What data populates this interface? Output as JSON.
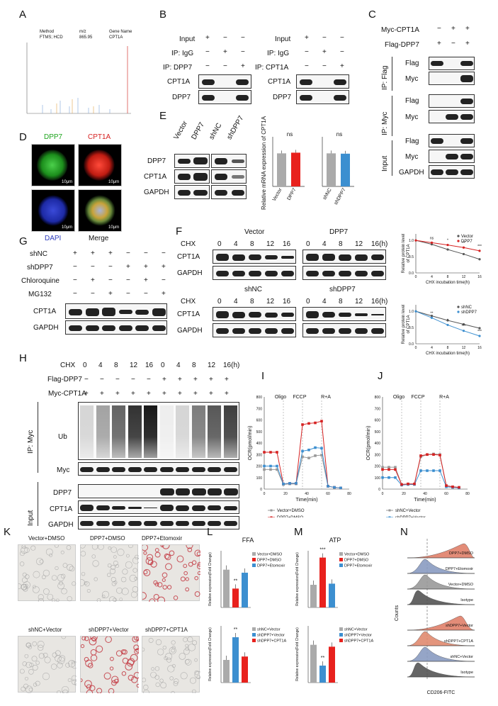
{
  "panels": {
    "A": "A",
    "B": "B",
    "C": "C",
    "D": "D",
    "E": "E",
    "F": "F",
    "G": "G",
    "H": "H",
    "I": "I",
    "J": "J",
    "K": "K",
    "L": "L",
    "M": "M",
    "N": "N"
  },
  "panelA": {
    "col1": "Method",
    "col1_val": "FTMS; HCD",
    "col2": "m/z",
    "col2_val": "865.95",
    "col3": "Gene Name",
    "col3_val": "CPT1A"
  },
  "panelB": {
    "rows_left": [
      "Input",
      "IP: IgG",
      "IP: DPP7"
    ],
    "rows_right": [
      "Input",
      "IP: IgG",
      "IP: CPT1A"
    ],
    "signs": [
      "+",
      "−",
      "−",
      "−",
      "+",
      "−",
      "−",
      "−",
      "+"
    ],
    "bands": [
      "CPT1A",
      "DPP7"
    ]
  },
  "panelC": {
    "rows": [
      "Myc-CPT1A",
      "Flag-DPP7"
    ],
    "signs": [
      "−",
      "+",
      "+",
      "+",
      "−",
      "+"
    ],
    "groups": [
      "IP: Flag",
      "IP: Myc",
      "Input"
    ],
    "bands": [
      "Flag",
      "Myc",
      "Flag",
      "Myc",
      "Flag",
      "Myc",
      "GAPDH"
    ]
  },
  "panelD": {
    "labels": [
      "DPP7",
      "CPT1A",
      "DAPI",
      "Merge"
    ],
    "scale": "10μm"
  },
  "panelE": {
    "cols": [
      "Vector",
      "DPP7",
      "shNC",
      "shDPP7"
    ],
    "bands": [
      "DPP7",
      "CPT1A",
      "GAPDH"
    ],
    "ylabel": "Relative mRNA expression\nof CPT1A",
    "ns": "ns",
    "chart_data": [
      {
        "type": "bar",
        "categories": [
          "Vector",
          "DPP7"
        ],
        "values": [
          1.0,
          1.02
        ],
        "colors": [
          "#aaaaaa",
          "#e8211d"
        ],
        "ylim": [
          0,
          1.5
        ]
      },
      {
        "type": "bar",
        "categories": [
          "shNC",
          "shDPP7"
        ],
        "values": [
          1.0,
          0.99
        ],
        "colors": [
          "#aaaaaa",
          "#3c8fd0"
        ],
        "ylim": [
          0,
          1.5
        ]
      }
    ]
  },
  "panelF": {
    "chx": "CHX",
    "times": [
      "0",
      "4",
      "8",
      "12",
      "16"
    ],
    "time_last": "16(h)",
    "groups": [
      "Vector",
      "DPP7",
      "shNC",
      "shDPP7"
    ],
    "bands": [
      "CPT1A",
      "GAPDH"
    ],
    "ylabel": "Relative protein level\nof CPT1A",
    "xlabel": "CHX incubation time(h)",
    "chart_data": [
      {
        "type": "line",
        "x": [
          0,
          4,
          8,
          12,
          16
        ],
        "series": [
          {
            "name": "Vector",
            "values": [
              1.0,
              0.88,
              0.72,
              0.58,
              0.42
            ],
            "color": "#555555"
          },
          {
            "name": "DPP7",
            "values": [
              1.0,
              0.93,
              0.86,
              0.78,
              0.68
            ],
            "color": "#d62222"
          }
        ],
        "sig": [
          "ns",
          "*",
          "**",
          "***"
        ]
      },
      {
        "type": "line",
        "x": [
          0,
          4,
          8,
          12,
          16
        ],
        "series": [
          {
            "name": "shNC",
            "values": [
              1.0,
              0.86,
              0.72,
              0.6,
              0.48
            ],
            "color": "#555555"
          },
          {
            "name": "shDPP7",
            "values": [
              1.0,
              0.8,
              0.58,
              0.4,
              0.24
            ],
            "color": "#3c8fd0"
          }
        ],
        "sig": [
          "**",
          "*",
          "***",
          "***"
        ]
      }
    ]
  },
  "panelG": {
    "rows": [
      "shNC",
      "shDPP7",
      "Chloroquine",
      "MG132"
    ],
    "signs": [
      [
        "+",
        "+",
        "+",
        "−",
        "−",
        "−"
      ],
      [
        "−",
        "−",
        "−",
        "+",
        "+",
        "+"
      ],
      [
        "−",
        "+",
        "−",
        "−",
        "+",
        "−"
      ],
      [
        "−",
        "−",
        "+",
        "−",
        "−",
        "+"
      ]
    ],
    "bands": [
      "CPT1A",
      "GAPDH"
    ]
  },
  "panelH": {
    "chx": "CHX",
    "times": [
      "0",
      "4",
      "8",
      "12",
      "16",
      "0",
      "4",
      "8",
      "12",
      "16(h)"
    ],
    "rows": [
      "Flag-DPP7",
      "Myc-CPT1A"
    ],
    "flag_signs": [
      "−",
      "−",
      "−",
      "−",
      "−",
      "+",
      "+",
      "+",
      "+",
      "+"
    ],
    "myc_signs": [
      "+",
      "+",
      "+",
      "+",
      "+",
      "+",
      "+",
      "+",
      "+",
      "+"
    ],
    "groups": [
      "IP: Myc",
      "Input"
    ],
    "bands": [
      "Ub",
      "Myc",
      "DPP7",
      "CPT1A",
      "GAPDH"
    ]
  },
  "panelI": {
    "ylabel": "OCR(pmol/min)",
    "xlabel": "Time(min)",
    "markers": [
      "Oligo",
      "FCCP",
      "R+A"
    ],
    "yticks": [
      "0",
      "100",
      "200",
      "300",
      "400",
      "500",
      "600",
      "700",
      "800"
    ],
    "xticks": [
      "0",
      "20",
      "40",
      "60",
      "80"
    ],
    "legend": [
      "Vector+DMSO",
      "DPP7+DMSO",
      "DPP7+Etomoxir"
    ],
    "chart_data": {
      "type": "line",
      "x": [
        0,
        6,
        12,
        18,
        24,
        30,
        36,
        42,
        48,
        54,
        60,
        66,
        72
      ],
      "series": [
        {
          "name": "Vector+DMSO",
          "values": [
            170,
            170,
            170,
            40,
            45,
            45,
            280,
            270,
            290,
            295,
            25,
            15,
            10
          ],
          "color": "#999999"
        },
        {
          "name": "DPP7+DMSO",
          "values": [
            320,
            320,
            320,
            45,
            50,
            50,
            560,
            570,
            575,
            590,
            25,
            15,
            10
          ],
          "color": "#d62222"
        },
        {
          "name": "DPP7+Etomoxir",
          "values": [
            200,
            200,
            200,
            45,
            50,
            50,
            330,
            340,
            360,
            355,
            25,
            15,
            10
          ],
          "color": "#3c8fd0"
        }
      ],
      "ylim": [
        0,
        800
      ],
      "xlim": [
        0,
        80
      ]
    }
  },
  "panelJ": {
    "ylabel": "OCR(pmol/min)",
    "xlabel": "Time(min)",
    "markers": [
      "Oligo",
      "FCCP",
      "R+A"
    ],
    "yticks": [
      "0",
      "100",
      "200",
      "300",
      "400",
      "500",
      "600",
      "700",
      "800"
    ],
    "xticks": [
      "0",
      "20",
      "40",
      "60",
      "80"
    ],
    "legend": [
      "shNC+Vector",
      "shDPP7+Vector",
      "shDPP7+CPT1A"
    ],
    "chart_data": {
      "type": "line",
      "x": [
        0,
        6,
        12,
        18,
        24,
        30,
        36,
        42,
        48,
        54,
        60,
        66,
        72
      ],
      "series": [
        {
          "name": "shNC+Vector",
          "values": [
            190,
            190,
            190,
            40,
            45,
            45,
            280,
            300,
            305,
            300,
            30,
            20,
            15
          ],
          "color": "#999999"
        },
        {
          "name": "shDPP7+Vector",
          "values": [
            100,
            100,
            100,
            35,
            40,
            40,
            160,
            160,
            160,
            160,
            20,
            15,
            10
          ],
          "color": "#3c8fd0"
        },
        {
          "name": "shDPP7+CPT1A",
          "values": [
            170,
            170,
            170,
            40,
            45,
            45,
            290,
            300,
            300,
            295,
            30,
            20,
            15
          ],
          "color": "#d62222"
        }
      ],
      "ylim": [
        0,
        800
      ],
      "xlim": [
        0,
        80
      ]
    }
  },
  "panelK": {
    "labels": [
      "Vector+DMSO",
      "DPP7+DMSO",
      "DPP7+Etomoxir",
      "shNC+Vector",
      "shDPP7+Vector",
      "shDPP7+CPT1A"
    ]
  },
  "panelL": {
    "title": "FFA",
    "ylabel": "Relative expression(Fold Change)",
    "sig1": "**",
    "sig2": "**",
    "legend1": [
      "Vector+DMSO",
      "DPP7+DMSO",
      "DPP7+Etomoxir"
    ],
    "legend2": [
      "shNC+Vector",
      "shDPP7+Vector",
      "shDPP7+CPT1A"
    ],
    "chart_data": [
      {
        "type": "bar",
        "categories": [
          "Vector+DMSO",
          "DPP7+DMSO",
          "DPP7+Etomoxir"
        ],
        "values": [
          1.0,
          0.5,
          0.92
        ],
        "colors": [
          "#aaaaaa",
          "#e8211d",
          "#3c8fd0"
        ],
        "ylim": [
          0,
          1.5
        ]
      },
      {
        "type": "bar",
        "categories": [
          "shNC+Vector",
          "shDPP7+Vector",
          "shDPP7+CPT1A"
        ],
        "values": [
          1.0,
          2.0,
          1.15
        ],
        "colors": [
          "#aaaaaa",
          "#3c8fd0",
          "#e8211d"
        ],
        "ylim": [
          0,
          2.5
        ]
      }
    ]
  },
  "panelM": {
    "title": "ATP",
    "ylabel": "Relative expression(Fold Change)",
    "sig1": "***",
    "sig2": "**",
    "legend1": [
      "Vector+DMSO",
      "DPP7+DMSO",
      "DPP7+Etomoxir"
    ],
    "legend2": [
      "shNC+Vector",
      "shDPP7+Vector",
      "shDPP7+CPT1A"
    ],
    "chart_data": [
      {
        "type": "bar",
        "categories": [
          "Vector+DMSO",
          "DPP7+DMSO",
          "DPP7+Etomoxir"
        ],
        "values": [
          1.0,
          2.2,
          1.05
        ],
        "colors": [
          "#aaaaaa",
          "#e8211d",
          "#3c8fd0"
        ],
        "ylim": [
          0,
          2.5
        ]
      },
      {
        "type": "bar",
        "categories": [
          "shNC+Vector",
          "shDPP7+Vector",
          "shDPP7+CPT1A"
        ],
        "values": [
          1.0,
          0.45,
          0.95
        ],
        "colors": [
          "#aaaaaa",
          "#3c8fd0",
          "#e8211d"
        ],
        "ylim": [
          0,
          1.5
        ]
      }
    ]
  },
  "panelN": {
    "ylabel": "Counts",
    "xlabel": "CD206-FITC",
    "top": [
      "DPP7+DMSO",
      "DPP7+Etomoxir",
      "Vector+DMSO",
      "Isotype"
    ],
    "bottom": [
      "shDPP7+Vector",
      "shDPP7+CPT1A",
      "shNC+Vector",
      "Isotype"
    ]
  }
}
